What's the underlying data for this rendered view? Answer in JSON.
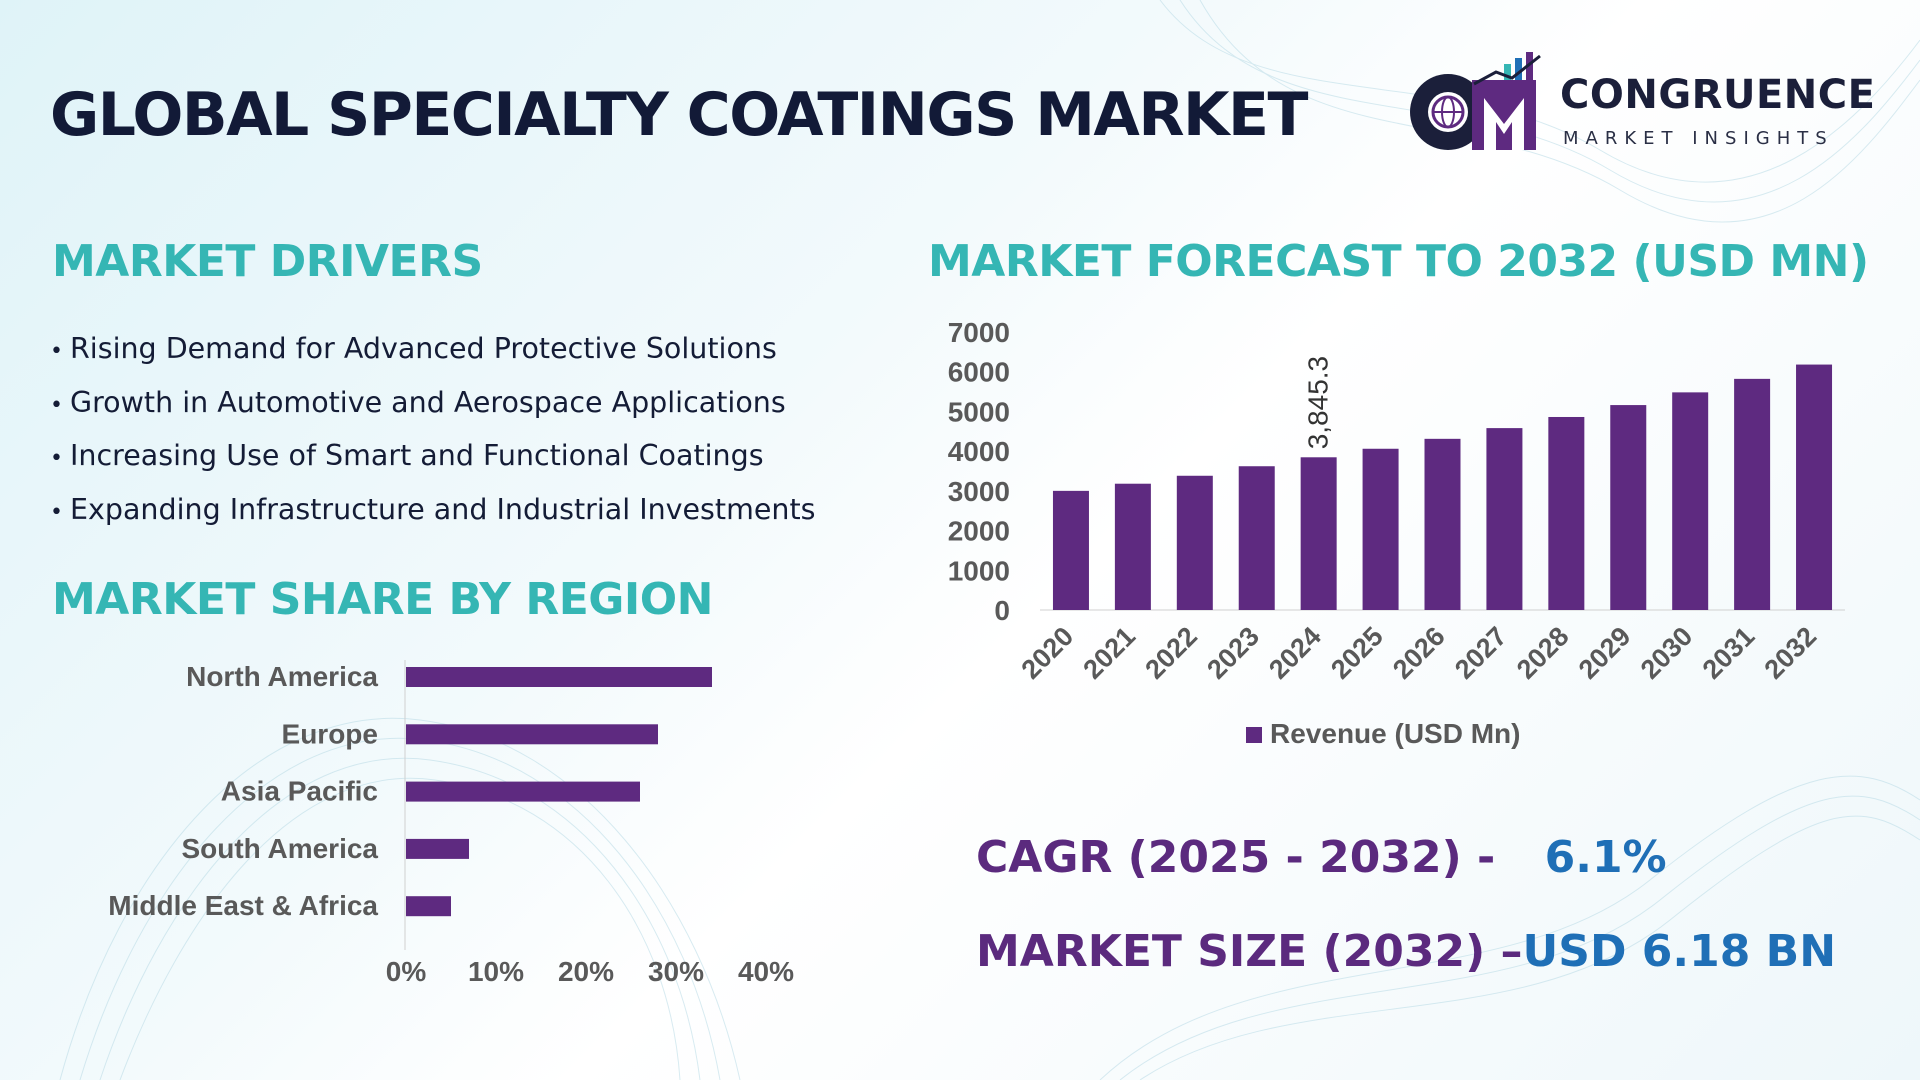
{
  "title": "GLOBAL SPECIALTY COATINGS MARKET",
  "logo": {
    "letters": "CM",
    "name": "CONGRUENCE",
    "tagline": "MARKET INSIGHTS"
  },
  "drivers": {
    "heading": "MARKET DRIVERS",
    "items": [
      "Rising Demand for Advanced Protective Solutions",
      "Growth in Automotive and Aerospace Applications",
      "Increasing Use of Smart and Functional Coatings",
      "Expanding Infrastructure and Industrial Investments"
    ]
  },
  "region": {
    "heading": "MARKET SHARE BY REGION"
  },
  "forecast": {
    "heading": "MARKET FORECAST TO 2032 (USD MN)"
  },
  "stats": {
    "cagr_label": "CAGR (2025 - 2032) -",
    "cagr_value": "6.1%",
    "size_label": "MARKET SIZE (2032) –",
    "size_value": "USD 6.18 BN"
  },
  "colors": {
    "bar": "#5e2a80",
    "heading": "#35b6b4",
    "title": "#121a37",
    "accent_blue": "#1f6fb6"
  },
  "chart_data": [
    {
      "type": "bar",
      "orientation": "horizontal",
      "categories": [
        "North America",
        "Europe",
        "Asia Pacific",
        "South America",
        "Middle East & Africa"
      ],
      "values": [
        34,
        28,
        26,
        7,
        5
      ],
      "xlim": [
        0,
        40
      ],
      "xticks": [
        "0%",
        "10%",
        "20%",
        "30%",
        "40%"
      ],
      "grid": false
    },
    {
      "type": "bar",
      "categories": [
        "2020",
        "2021",
        "2022",
        "2023",
        "2024",
        "2025",
        "2026",
        "2027",
        "2028",
        "2029",
        "2030",
        "2031",
        "2032"
      ],
      "series": [
        {
          "name": "Revenue (USD Mn)",
          "values": [
            3000,
            3180,
            3380,
            3620,
            3845.3,
            4060,
            4310,
            4580,
            4860,
            5160,
            5480,
            5820,
            6180
          ]
        }
      ],
      "data_labels": [
        {
          "index": 4,
          "text": "3,845.3"
        }
      ],
      "ylim": [
        0,
        7000
      ],
      "yticks": [
        "0",
        "1000",
        "2000",
        "3000",
        "4000",
        "5000",
        "6000",
        "7000"
      ],
      "legend": "bottom",
      "grid": false
    }
  ]
}
